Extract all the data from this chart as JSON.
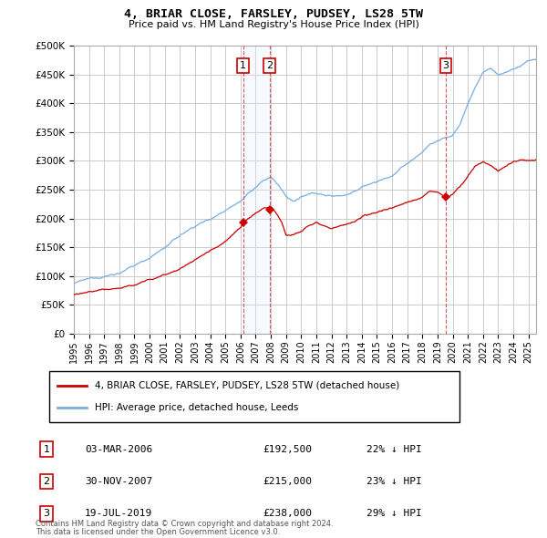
{
  "title": "4, BRIAR CLOSE, FARSLEY, PUDSEY, LS28 5TW",
  "subtitle": "Price paid vs. HM Land Registry's House Price Index (HPI)",
  "ylim": [
    0,
    500000
  ],
  "yticks": [
    0,
    50000,
    100000,
    150000,
    200000,
    250000,
    300000,
    350000,
    400000,
    450000,
    500000
  ],
  "ytick_labels": [
    "£0",
    "£50K",
    "£100K",
    "£150K",
    "£200K",
    "£250K",
    "£300K",
    "£350K",
    "£400K",
    "£450K",
    "£500K"
  ],
  "background_color": "#ffffff",
  "plot_bg_color": "#ffffff",
  "grid_color": "#cccccc",
  "sale_color": "#cc0000",
  "hpi_color": "#7aade0",
  "shade_color": "#ddeeff",
  "transactions": [
    {
      "id": 1,
      "date_x": 2006.17,
      "price": 192500,
      "label": "1",
      "date_str": "03-MAR-2006",
      "pct": "22%"
    },
    {
      "id": 2,
      "date_x": 2007.92,
      "price": 215000,
      "label": "2",
      "date_str": "30-NOV-2007",
      "pct": "23%"
    },
    {
      "id": 3,
      "date_x": 2019.54,
      "price": 238000,
      "label": "3",
      "date_str": "19-JUL-2019",
      "pct": "29%"
    }
  ],
  "legend_sale_label": "4, BRIAR CLOSE, FARSLEY, PUDSEY, LS28 5TW (detached house)",
  "legend_hpi_label": "HPI: Average price, detached house, Leeds",
  "footer_line1": "Contains HM Land Registry data © Crown copyright and database right 2024.",
  "footer_line2": "This data is licensed under the Open Government Licence v3.0.",
  "xmin": 1995,
  "xmax": 2025.5
}
